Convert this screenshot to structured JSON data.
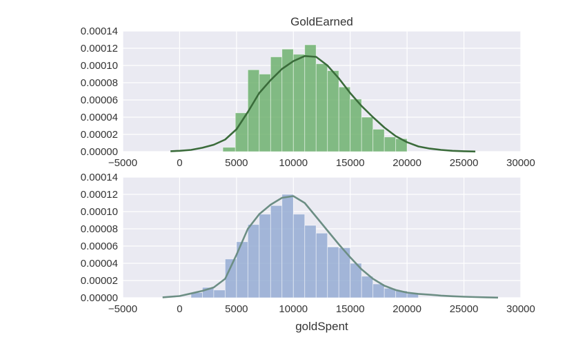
{
  "chart_data": [
    {
      "type": "bar",
      "title": "GoldEarned",
      "xlabel": "",
      "ylabel": "",
      "xlim": [
        -5000,
        30000
      ],
      "ylim": [
        0,
        0.00014
      ],
      "grid": true,
      "xticks": [
        "−5000",
        "0",
        "5000",
        "10000",
        "15000",
        "20000",
        "25000",
        "30000"
      ],
      "yticks": [
        "0.00000",
        "0.00002",
        "0.00004",
        "0.00006",
        "0.00008",
        "0.00010",
        "0.00012",
        "0.00014"
      ],
      "bar_color": "#6ab06a",
      "line_color": "#3a6b3a",
      "histogram": {
        "bin_edges": [
          3800,
          4900,
          6000,
          7000,
          8000,
          9000,
          10000,
          11000,
          12000,
          13000,
          14000,
          15000,
          16000,
          17000,
          18000,
          19000,
          20000
        ],
        "values": [
          5e-06,
          4.5e-05,
          9.5e-05,
          9e-05,
          0.00011,
          0.000119,
          0.000113,
          0.000124,
          0.000102,
          9.4e-05,
          7.5e-05,
          6.1e-05,
          4e-05,
          2.6e-05,
          1.7e-05,
          1.5e-05
        ]
      },
      "kde": {
        "x": [
          -800,
          0,
          1000,
          2000,
          3000,
          4000,
          5000,
          6000,
          7000,
          8000,
          9000,
          10000,
          11000,
          12000,
          13000,
          14000,
          15000,
          16000,
          17000,
          18000,
          19000,
          20000,
          21000,
          22000,
          23000,
          24000,
          25000,
          26000
        ],
        "y": [
          5e-07,
          1e-06,
          2e-06,
          4.5e-06,
          8e-06,
          1.4e-05,
          2.6e-05,
          4.6e-05,
          6.8e-05,
          8.3e-05,
          9.6e-05,
          0.000105,
          0.000111,
          0.00011,
          0.0001,
          8.5e-05,
          6.8e-05,
          5.3e-05,
          4e-05,
          2.8e-05,
          1.8e-05,
          1.1e-05,
          6e-06,
          3.5e-06,
          2e-06,
          1e-06,
          5e-07,
          2e-07
        ]
      }
    },
    {
      "type": "bar",
      "title": "",
      "xlabel": "goldSpent",
      "ylabel": "",
      "xlim": [
        -5000,
        30000
      ],
      "ylim": [
        0,
        0.00014
      ],
      "grid": true,
      "xticks": [
        "−5000",
        "0",
        "5000",
        "10000",
        "15000",
        "20000",
        "25000",
        "30000"
      ],
      "yticks": [
        "0.00000",
        "0.00002",
        "0.00004",
        "0.00006",
        "0.00008",
        "0.00010",
        "0.00012",
        "0.00014"
      ],
      "bar_color": "#93a9d2",
      "line_color": "#6c8e84",
      "histogram": {
        "bin_edges": [
          1000,
          2000,
          3000,
          4000,
          5000,
          6000,
          7000,
          8000,
          9000,
          10000,
          11000,
          12000,
          13000,
          14000,
          15000,
          16000,
          17000,
          18000,
          19000,
          20000,
          21000
        ],
        "values": [
          6e-06,
          1.2e-05,
          9e-06,
          4.5e-05,
          6.5e-05,
          8.5e-05,
          9.7e-05,
          0.000107,
          0.00012,
          9.7e-05,
          8.4e-05,
          7.5e-05,
          5.9e-05,
          5.8e-05,
          4e-05,
          2.5e-05,
          1.6e-05,
          1.1e-05,
          8e-06,
          5e-06
        ]
      },
      "kde": {
        "x": [
          -1500,
          0,
          1000,
          2000,
          3000,
          4000,
          5000,
          6000,
          7000,
          8000,
          9000,
          10000,
          11000,
          12000,
          13000,
          14000,
          15000,
          16000,
          17000,
          18000,
          19000,
          20000,
          21000,
          22000,
          23000,
          24000,
          25000,
          26000,
          27000,
          28000
        ],
        "y": [
          5e-07,
          2e-06,
          5e-06,
          8e-06,
          1.2e-05,
          2.2e-05,
          5e-05,
          8e-05,
          9.7e-05,
          0.000108,
          0.000116,
          0.000118,
          0.00011,
          9.4e-05,
          7.8e-05,
          6.2e-05,
          4.7e-05,
          3.3e-05,
          2.2e-05,
          1.4e-05,
          9e-06,
          6e-06,
          4.5e-06,
          3.5e-06,
          2.5e-06,
          1.8e-06,
          1.2e-06,
          8e-07,
          5e-07,
          2e-07
        ]
      }
    }
  ]
}
